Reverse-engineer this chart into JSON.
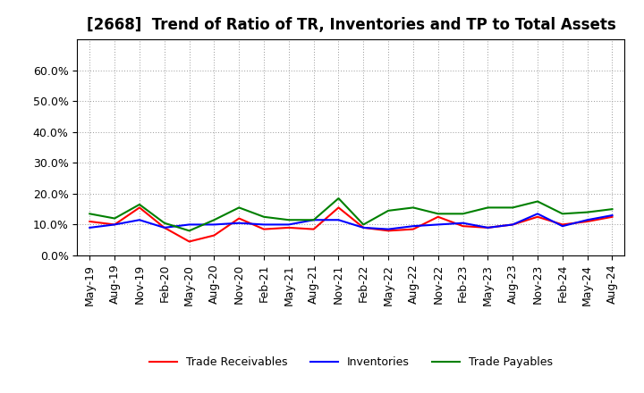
{
  "title": "[2668]  Trend of Ratio of TR, Inventories and TP to Total Assets",
  "x_labels": [
    "May-19",
    "Aug-19",
    "Nov-19",
    "Feb-20",
    "May-20",
    "Aug-20",
    "Nov-20",
    "Feb-21",
    "May-21",
    "Aug-21",
    "Nov-21",
    "Feb-22",
    "May-22",
    "Aug-22",
    "Nov-22",
    "Feb-23",
    "May-23",
    "Aug-23",
    "Nov-23",
    "Feb-24",
    "May-24",
    "Aug-24"
  ],
  "trade_receivables": [
    0.11,
    0.1,
    0.155,
    0.09,
    0.045,
    0.065,
    0.12,
    0.085,
    0.09,
    0.085,
    0.155,
    0.09,
    0.08,
    0.085,
    0.125,
    0.095,
    0.09,
    0.1,
    0.125,
    0.1,
    0.11,
    0.125
  ],
  "inventories": [
    0.09,
    0.1,
    0.115,
    0.09,
    0.1,
    0.1,
    0.105,
    0.1,
    0.1,
    0.115,
    0.115,
    0.09,
    0.085,
    0.095,
    0.1,
    0.105,
    0.09,
    0.1,
    0.135,
    0.095,
    0.115,
    0.13
  ],
  "trade_payables": [
    0.135,
    0.12,
    0.165,
    0.105,
    0.08,
    0.115,
    0.155,
    0.125,
    0.115,
    0.115,
    0.185,
    0.1,
    0.145,
    0.155,
    0.135,
    0.135,
    0.155,
    0.155,
    0.175,
    0.135,
    0.14,
    0.15
  ],
  "ylim": [
    0.0,
    0.7
  ],
  "yticks": [
    0.0,
    0.1,
    0.2,
    0.3,
    0.4,
    0.5,
    0.6
  ],
  "colors": {
    "trade_receivables": "#ff0000",
    "inventories": "#0000ff",
    "trade_payables": "#008000"
  },
  "background_color": "#ffffff",
  "grid_color": "#999999",
  "title_fontsize": 12,
  "tick_fontsize": 9,
  "legend_fontsize": 9,
  "linewidth": 1.5
}
